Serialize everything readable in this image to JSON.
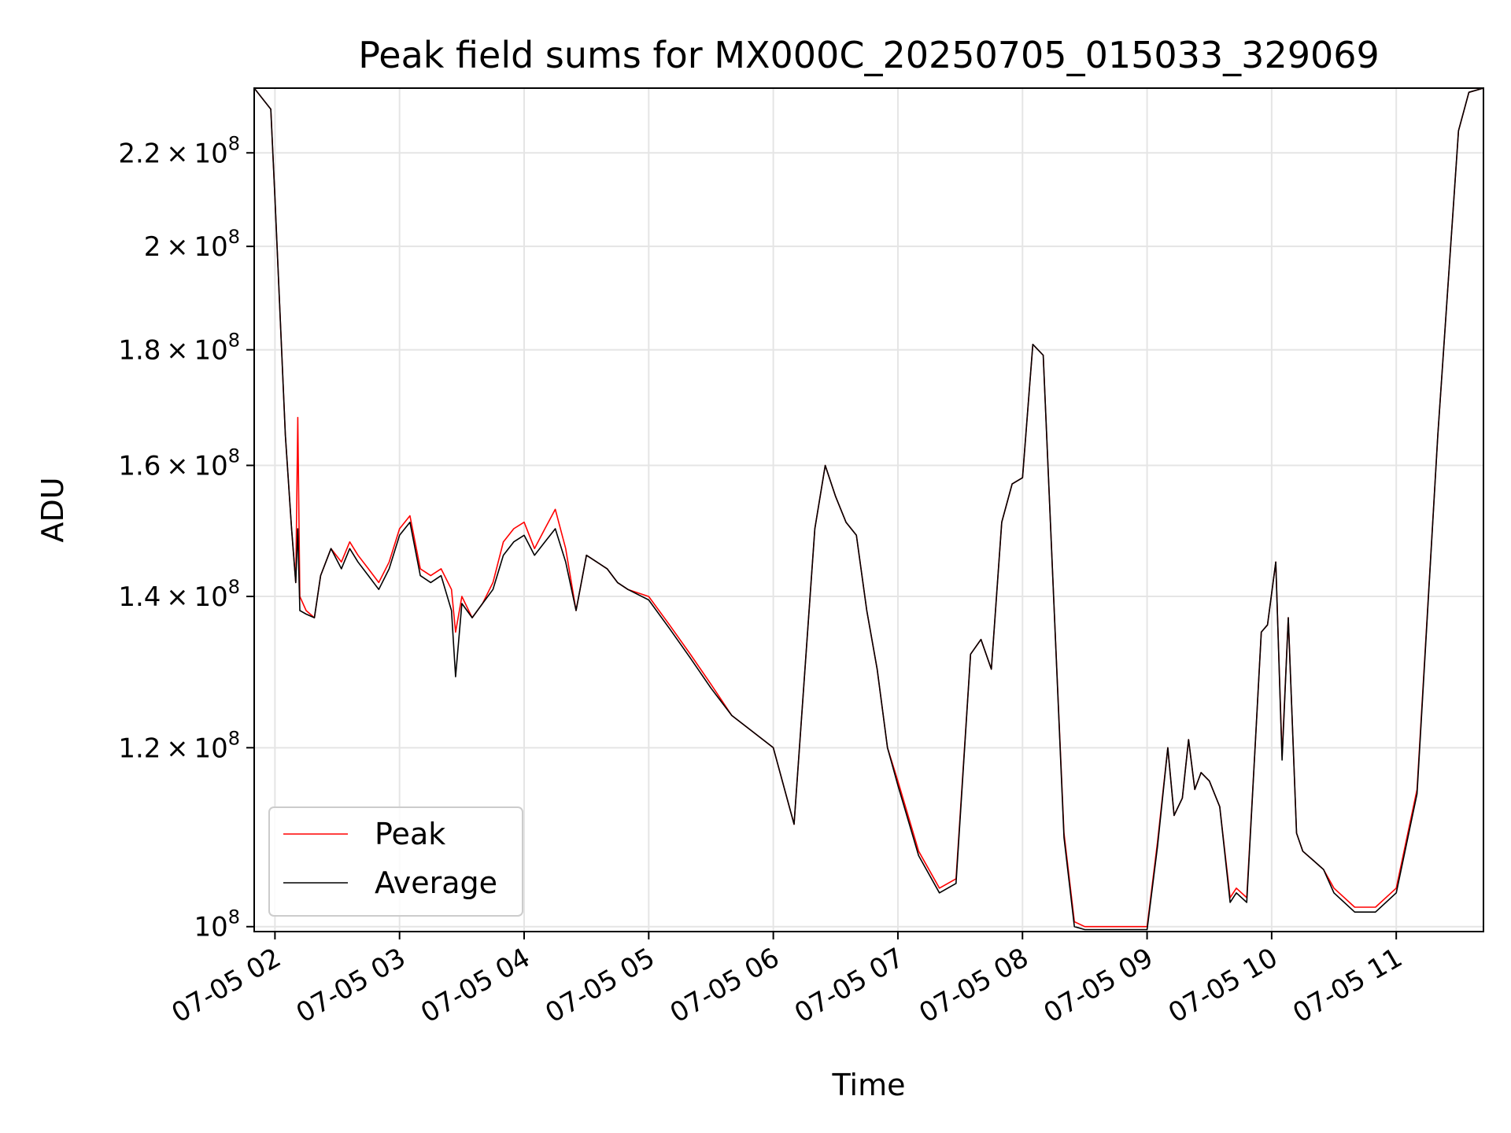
{
  "chart_data": {
    "type": "line",
    "title": "Peak field sums for MX000C_20250705_015033_329069",
    "xlabel": "Time",
    "ylabel": "ADU",
    "y_scale": "log",
    "grid": true,
    "legend_position": "lower-left",
    "colors": {
      "peak": "#ff0000",
      "average": "#000000",
      "grid": "#e5e5e5"
    },
    "x_ticks": [
      "07-05 02",
      "07-05 03",
      "07-05 04",
      "07-05 05",
      "07-05 06",
      "07-05 07",
      "07-05 08",
      "07-05 09",
      "07-05 10",
      "07-05 11"
    ],
    "x_tick_times": [
      "2025-07-05 02:00",
      "2025-07-05 03:00",
      "2025-07-05 04:00",
      "2025-07-05 05:00",
      "2025-07-05 06:00",
      "2025-07-05 07:00",
      "2025-07-05 08:00",
      "2025-07-05 09:00",
      "2025-07-05 10:00",
      "2025-07-05 11:00"
    ],
    "xlim": [
      "2025-07-05 01:50",
      "2025-07-05 11:42"
    ],
    "y_ticks": [
      {
        "value": 100000000,
        "mantissa": "",
        "exponent": "8"
      },
      {
        "value": 120000000,
        "mantissa": "1.2",
        "exponent": "8"
      },
      {
        "value": 140000000,
        "mantissa": "1.4",
        "exponent": "8"
      },
      {
        "value": 160000000,
        "mantissa": "1.6",
        "exponent": "8"
      },
      {
        "value": 180000000,
        "mantissa": "1.8",
        "exponent": "8"
      },
      {
        "value": 200000000,
        "mantissa": "2",
        "exponent": "8"
      },
      {
        "value": 220000000,
        "mantissa": "2.2",
        "exponent": "8"
      }
    ],
    "ylim": [
      99500000,
      235000000
    ],
    "series": [
      {
        "name": "Peak",
        "x": [
          "2025-07-05 01:50",
          "2025-07-05 01:58",
          "2025-07-05 02:00",
          "2025-07-05 02:05",
          "2025-07-05 02:08",
          "2025-07-05 02:10",
          "2025-07-05 02:11",
          "2025-07-05 02:12",
          "2025-07-05 02:15",
          "2025-07-05 02:19",
          "2025-07-05 02:22",
          "2025-07-05 02:27",
          "2025-07-05 02:32",
          "2025-07-05 02:36",
          "2025-07-05 02:40",
          "2025-07-05 02:45",
          "2025-07-05 02:50",
          "2025-07-05 02:55",
          "2025-07-05 03:00",
          "2025-07-05 03:05",
          "2025-07-05 03:10",
          "2025-07-05 03:15",
          "2025-07-05 03:20",
          "2025-07-05 03:25",
          "2025-07-05 03:27",
          "2025-07-05 03:30",
          "2025-07-05 03:35",
          "2025-07-05 03:40",
          "2025-07-05 03:45",
          "2025-07-05 03:50",
          "2025-07-05 03:55",
          "2025-07-05 04:00",
          "2025-07-05 04:05",
          "2025-07-05 04:10",
          "2025-07-05 04:15",
          "2025-07-05 04:20",
          "2025-07-05 04:25",
          "2025-07-05 04:30",
          "2025-07-05 04:35",
          "2025-07-05 04:40",
          "2025-07-05 04:45",
          "2025-07-05 04:50",
          "2025-07-05 05:00",
          "2025-07-05 05:10",
          "2025-07-05 05:20",
          "2025-07-05 05:30",
          "2025-07-05 05:40",
          "2025-07-05 05:50",
          "2025-07-05 06:00",
          "2025-07-05 06:10",
          "2025-07-05 06:20",
          "2025-07-05 06:25",
          "2025-07-05 06:30",
          "2025-07-05 06:35",
          "2025-07-05 06:40",
          "2025-07-05 06:45",
          "2025-07-05 06:50",
          "2025-07-05 06:55",
          "2025-07-05 07:00",
          "2025-07-05 07:10",
          "2025-07-05 07:20",
          "2025-07-05 07:28",
          "2025-07-05 07:35",
          "2025-07-05 07:40",
          "2025-07-05 07:45",
          "2025-07-05 07:50",
          "2025-07-05 07:55",
          "2025-07-05 08:00",
          "2025-07-05 08:05",
          "2025-07-05 08:10",
          "2025-07-05 08:15",
          "2025-07-05 08:20",
          "2025-07-05 08:25",
          "2025-07-05 08:30",
          "2025-07-05 08:37",
          "2025-07-05 08:45",
          "2025-07-05 08:55",
          "2025-07-05 09:00",
          "2025-07-05 09:05",
          "2025-07-05 09:10",
          "2025-07-05 09:13",
          "2025-07-05 09:17",
          "2025-07-05 09:20",
          "2025-07-05 09:23",
          "2025-07-05 09:26",
          "2025-07-05 09:30",
          "2025-07-05 09:35",
          "2025-07-05 09:40",
          "2025-07-05 09:43",
          "2025-07-05 09:48",
          "2025-07-05 09:52",
          "2025-07-05 09:55",
          "2025-07-05 09:58",
          "2025-07-05 10:02",
          "2025-07-05 10:05",
          "2025-07-05 10:08",
          "2025-07-05 10:12",
          "2025-07-05 10:15",
          "2025-07-05 10:20",
          "2025-07-05 10:25",
          "2025-07-05 10:30",
          "2025-07-05 10:40",
          "2025-07-05 10:50",
          "2025-07-05 11:00",
          "2025-07-05 11:10",
          "2025-07-05 11:20",
          "2025-07-05 11:30",
          "2025-07-05 11:35",
          "2025-07-05 11:42"
        ],
        "values": [
          235000000,
          230000000,
          210000000,
          165000000,
          150000000,
          142000000,
          168000000,
          140000000,
          138000000,
          137000000,
          143000000,
          147000000,
          145000000,
          148000000,
          146000000,
          144000000,
          142000000,
          145000000,
          150000000,
          152000000,
          144000000,
          143000000,
          144000000,
          141000000,
          135000000,
          140000000,
          137000000,
          139000000,
          142000000,
          148000000,
          150000000,
          151000000,
          147000000,
          150000000,
          153000000,
          147000000,
          138000000,
          146000000,
          145000000,
          144000000,
          142000000,
          141000000,
          140000000,
          136000000,
          132000000,
          128000000,
          124000000,
          122000000,
          120000000,
          111000000,
          150000000,
          160000000,
          155000000,
          151000000,
          149000000,
          138000000,
          130000000,
          120000000,
          116000000,
          108000000,
          104000000,
          105000000,
          132000000,
          134000000,
          130000000,
          151000000,
          157000000,
          158000000,
          181000000,
          179000000,
          140000000,
          110000000,
          100500000,
          100000000,
          100000000,
          100000000,
          100000000,
          100000000,
          109000000,
          120000000,
          112000000,
          114000000,
          121000000,
          115000000,
          117000000,
          116000000,
          113000000,
          103000000,
          104000000,
          103000000,
          120000000,
          135000000,
          136000000,
          145000000,
          119000000,
          137000000,
          110000000,
          108000000,
          107000000,
          106000000,
          104000000,
          102000000,
          102000000,
          104000000,
          115000000,
          165000000,
          225000000,
          234000000,
          235000000
        ]
      },
      {
        "name": "Average",
        "x": [
          "2025-07-05 01:50",
          "2025-07-05 01:58",
          "2025-07-05 02:00",
          "2025-07-05 02:05",
          "2025-07-05 02:08",
          "2025-07-05 02:10",
          "2025-07-05 02:11",
          "2025-07-05 02:12",
          "2025-07-05 02:15",
          "2025-07-05 02:19",
          "2025-07-05 02:22",
          "2025-07-05 02:27",
          "2025-07-05 02:32",
          "2025-07-05 02:36",
          "2025-07-05 02:40",
          "2025-07-05 02:45",
          "2025-07-05 02:50",
          "2025-07-05 02:55",
          "2025-07-05 03:00",
          "2025-07-05 03:05",
          "2025-07-05 03:10",
          "2025-07-05 03:15",
          "2025-07-05 03:20",
          "2025-07-05 03:25",
          "2025-07-05 03:27",
          "2025-07-05 03:30",
          "2025-07-05 03:35",
          "2025-07-05 03:40",
          "2025-07-05 03:45",
          "2025-07-05 03:50",
          "2025-07-05 03:55",
          "2025-07-05 04:00",
          "2025-07-05 04:05",
          "2025-07-05 04:10",
          "2025-07-05 04:15",
          "2025-07-05 04:20",
          "2025-07-05 04:25",
          "2025-07-05 04:30",
          "2025-07-05 04:35",
          "2025-07-05 04:40",
          "2025-07-05 04:45",
          "2025-07-05 04:50",
          "2025-07-05 05:00",
          "2025-07-05 05:10",
          "2025-07-05 05:20",
          "2025-07-05 05:30",
          "2025-07-05 05:40",
          "2025-07-05 05:50",
          "2025-07-05 06:00",
          "2025-07-05 06:10",
          "2025-07-05 06:20",
          "2025-07-05 06:25",
          "2025-07-05 06:30",
          "2025-07-05 06:35",
          "2025-07-05 06:40",
          "2025-07-05 06:45",
          "2025-07-05 06:50",
          "2025-07-05 06:55",
          "2025-07-05 07:00",
          "2025-07-05 07:10",
          "2025-07-05 07:20",
          "2025-07-05 07:28",
          "2025-07-05 07:35",
          "2025-07-05 07:40",
          "2025-07-05 07:45",
          "2025-07-05 07:50",
          "2025-07-05 07:55",
          "2025-07-05 08:00",
          "2025-07-05 08:05",
          "2025-07-05 08:10",
          "2025-07-05 08:15",
          "2025-07-05 08:20",
          "2025-07-05 08:25",
          "2025-07-05 08:30",
          "2025-07-05 08:37",
          "2025-07-05 08:45",
          "2025-07-05 08:55",
          "2025-07-05 09:00",
          "2025-07-05 09:05",
          "2025-07-05 09:10",
          "2025-07-05 09:13",
          "2025-07-05 09:17",
          "2025-07-05 09:20",
          "2025-07-05 09:23",
          "2025-07-05 09:26",
          "2025-07-05 09:30",
          "2025-07-05 09:35",
          "2025-07-05 09:40",
          "2025-07-05 09:43",
          "2025-07-05 09:48",
          "2025-07-05 09:52",
          "2025-07-05 09:55",
          "2025-07-05 09:58",
          "2025-07-05 10:02",
          "2025-07-05 10:05",
          "2025-07-05 10:08",
          "2025-07-05 10:12",
          "2025-07-05 10:15",
          "2025-07-05 10:20",
          "2025-07-05 10:25",
          "2025-07-05 10:30",
          "2025-07-05 10:40",
          "2025-07-05 10:50",
          "2025-07-05 11:00",
          "2025-07-05 11:10",
          "2025-07-05 11:20",
          "2025-07-05 11:30",
          "2025-07-05 11:35",
          "2025-07-05 11:42"
        ],
        "values": [
          235000000,
          230000000,
          210000000,
          165000000,
          150000000,
          142000000,
          150000000,
          138000000,
          137500000,
          137000000,
          143000000,
          147000000,
          144000000,
          147000000,
          145000000,
          143000000,
          141000000,
          144000000,
          149000000,
          151000000,
          143000000,
          142000000,
          143000000,
          138000000,
          129000000,
          139000000,
          137000000,
          139000000,
          141000000,
          146000000,
          148000000,
          149000000,
          146000000,
          148000000,
          150000000,
          145000000,
          138000000,
          146000000,
          145000000,
          144000000,
          142000000,
          141000000,
          139500000,
          135500000,
          131500000,
          127500000,
          124000000,
          122000000,
          120000000,
          111000000,
          150000000,
          160000000,
          155000000,
          151000000,
          149000000,
          138000000,
          130000000,
          120000000,
          115500000,
          107500000,
          103500000,
          104500000,
          132000000,
          134000000,
          130000000,
          151000000,
          157000000,
          158000000,
          181000000,
          179000000,
          140000000,
          109500000,
          100000000,
          99700000,
          99700000,
          99700000,
          99700000,
          99700000,
          108500000,
          120000000,
          112000000,
          114000000,
          121000000,
          115000000,
          117000000,
          116000000,
          113000000,
          102500000,
          103500000,
          102500000,
          120000000,
          135000000,
          136000000,
          145000000,
          118500000,
          137000000,
          110000000,
          108000000,
          107000000,
          106000000,
          103500000,
          101500000,
          101500000,
          103500000,
          114500000,
          165000000,
          225000000,
          234000000,
          235000000
        ]
      }
    ]
  }
}
